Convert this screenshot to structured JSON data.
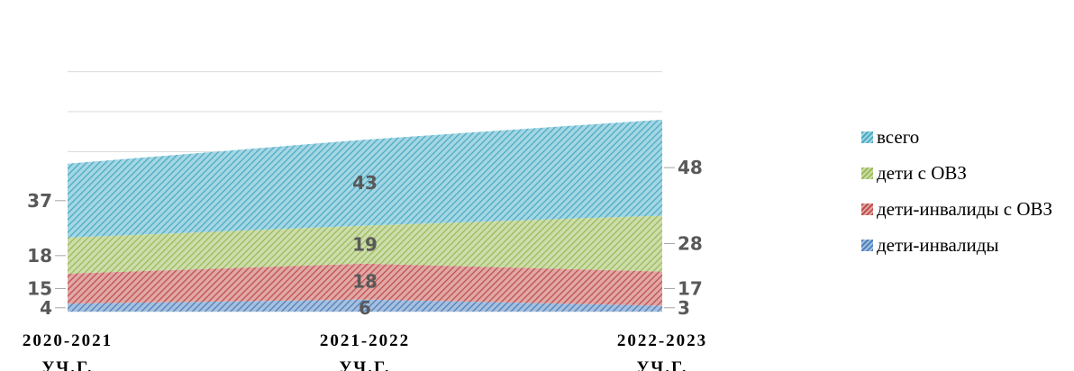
{
  "chart_data": {
    "type": "area",
    "stacked": true,
    "categories": [
      [
        "2020-2021",
        "УЧ.Г."
      ],
      [
        "2021-2022",
        "УЧ.Г."
      ],
      [
        "2022-2023",
        "УЧ.Г."
      ]
    ],
    "series": [
      {
        "name": "дети-инвалиды",
        "values": [
          4,
          6,
          3
        ],
        "color": "#4f81bd"
      },
      {
        "name": "дети-инвалиды с ОВЗ",
        "values": [
          15,
          18,
          17
        ],
        "color": "#c0504d"
      },
      {
        "name": "дети с ОВЗ",
        "values": [
          18,
          19,
          28
        ],
        "color": "#9bbb59"
      },
      {
        "name": "всего",
        "values": [
          37,
          43,
          48
        ],
        "color": "#4bacc6"
      }
    ],
    "legend_order": [
      "всего",
      "дети с ОВЗ",
      "дети-инвалиды с ОВЗ",
      "дети-инвалиды"
    ],
    "ylim": [
      0,
      120
    ],
    "gridlines": true,
    "fill_pattern": "diagonal-hatch",
    "legend_position": "right"
  }
}
